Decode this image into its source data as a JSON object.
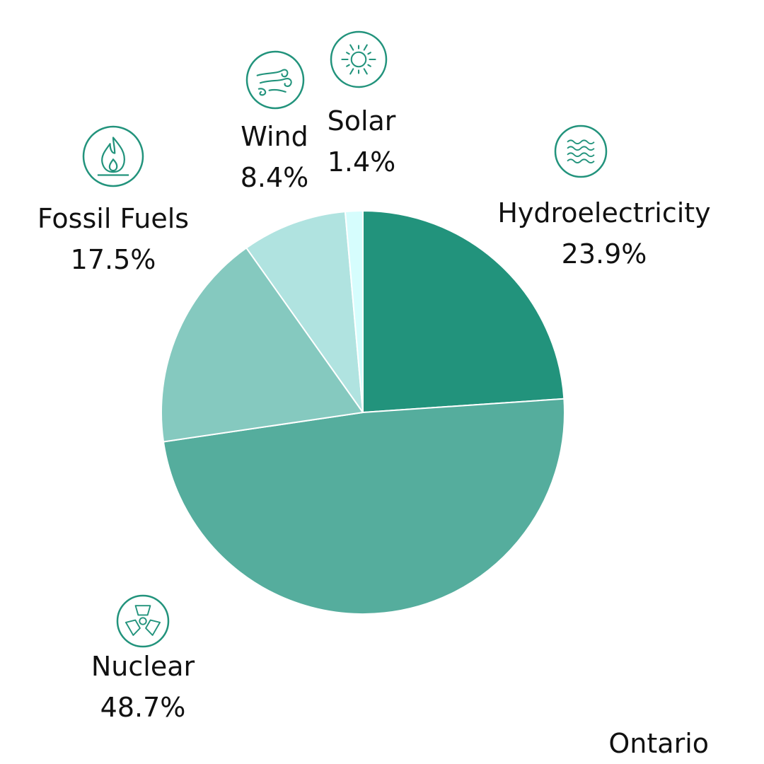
{
  "chart_data": {
    "type": "pie",
    "categories": [
      "Hydroelectricity",
      "Nuclear",
      "Fossil Fuels",
      "Wind",
      "Solar"
    ],
    "values": [
      23.9,
      48.7,
      17.5,
      8.4,
      1.4
    ],
    "value_labels": [
      "23.9%",
      "48.7%",
      "17.5%",
      "8.4%",
      "1.4%"
    ],
    "colors": [
      "#22937c",
      "#55ad9d",
      "#85c9bf",
      "#b0e3e0",
      "#d6fdfd"
    ],
    "icons": [
      "water-waves-icon",
      "nuclear-fan-icon",
      "flame-icon",
      "wind-swirl-icon",
      "sun-icon"
    ],
    "start_angle_deg": 0,
    "direction": "clockwise",
    "legend": "none",
    "region_label": "Ontario"
  }
}
